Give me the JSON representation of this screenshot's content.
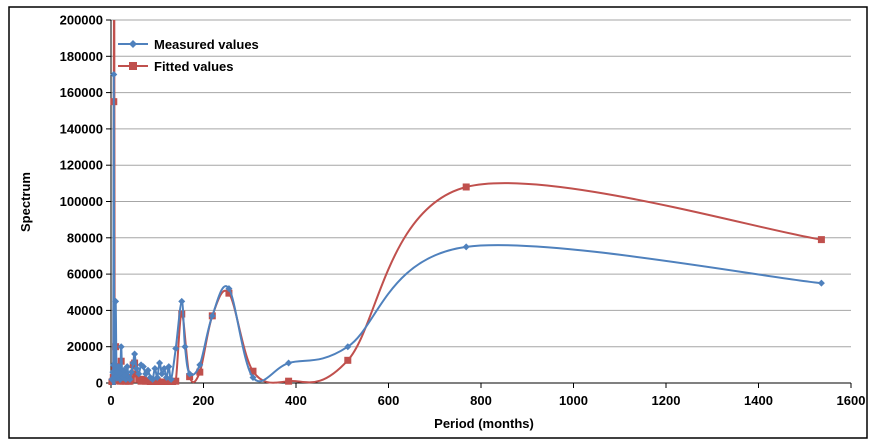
{
  "chart_data": {
    "type": "line",
    "xlabel": "Period (months)",
    "ylabel": "Spectrum",
    "xlim": [
      0,
      1600
    ],
    "ylim": [
      0,
      200000
    ],
    "xticks": [
      0,
      200,
      400,
      600,
      800,
      1000,
      1200,
      1400,
      1600
    ],
    "yticks": [
      0,
      20000,
      40000,
      60000,
      80000,
      100000,
      120000,
      140000,
      160000,
      180000,
      200000
    ],
    "grid": "horizontal",
    "legend": "top-left",
    "series": [
      {
        "name": "Measured values",
        "color": "#4f81bd",
        "marker": "diamond",
        "points": [
          [
            2,
            2000
          ],
          [
            4,
            6000
          ],
          [
            5,
            10000
          ],
          [
            6,
            170000
          ],
          [
            7,
            5000
          ],
          [
            8,
            3000
          ],
          [
            10,
            45000
          ],
          [
            12,
            4000
          ],
          [
            14,
            6000
          ],
          [
            16,
            9000
          ],
          [
            18,
            3000
          ],
          [
            20,
            2000
          ],
          [
            22,
            20000
          ],
          [
            24,
            5000
          ],
          [
            26,
            3000
          ],
          [
            28,
            7000
          ],
          [
            30,
            4000
          ],
          [
            32,
            2000
          ],
          [
            35,
            9000
          ],
          [
            38,
            3000
          ],
          [
            41,
            2000
          ],
          [
            44,
            6000
          ],
          [
            48,
            11000
          ],
          [
            51,
            16000
          ],
          [
            55,
            8000
          ],
          [
            60,
            5000
          ],
          [
            65,
            10000
          ],
          [
            70,
            9000
          ],
          [
            75,
            5000
          ],
          [
            80,
            7000
          ],
          [
            85,
            3000
          ],
          [
            90,
            2000
          ],
          [
            95,
            8000
          ],
          [
            100,
            3000
          ],
          [
            105,
            11000
          ],
          [
            110,
            5000
          ],
          [
            115,
            8000
          ],
          [
            120,
            3000
          ],
          [
            125,
            9000
          ],
          [
            130,
            2000
          ],
          [
            140,
            19000
          ],
          [
            153,
            45000
          ],
          [
            160,
            20000
          ],
          [
            170,
            5000
          ],
          [
            192,
            10000
          ],
          [
            219,
            37000
          ],
          [
            255,
            52000
          ],
          [
            307,
            3000
          ],
          [
            384,
            11000
          ],
          [
            512,
            20000
          ],
          [
            768,
            75000
          ],
          [
            1536,
            55000
          ]
        ]
      },
      {
        "name": "Fitted values",
        "color": "#c0504d",
        "marker": "square",
        "points": [
          [
            2,
            500
          ],
          [
            4,
            1000
          ],
          [
            5,
            3000
          ],
          [
            6,
            155000
          ],
          [
            7,
            230000
          ],
          [
            8,
            8000
          ],
          [
            10,
            20000
          ],
          [
            12,
            2000
          ],
          [
            14,
            4000
          ],
          [
            16,
            9000
          ],
          [
            18,
            2000
          ],
          [
            20,
            1000
          ],
          [
            22,
            12000
          ],
          [
            24,
            2000
          ],
          [
            26,
            1000
          ],
          [
            28,
            5000
          ],
          [
            30,
            2000
          ],
          [
            32,
            1000
          ],
          [
            35,
            3000
          ],
          [
            38,
            1000
          ],
          [
            41,
            1000
          ],
          [
            44,
            2000
          ],
          [
            48,
            10000
          ],
          [
            51,
            11000
          ],
          [
            55,
            5000
          ],
          [
            60,
            2000
          ],
          [
            65,
            1000
          ],
          [
            70,
            2000
          ],
          [
            75,
            1000
          ],
          [
            80,
            1000
          ],
          [
            85,
            500
          ],
          [
            90,
            500
          ],
          [
            95,
            500
          ],
          [
            100,
            1000
          ],
          [
            105,
            500
          ],
          [
            110,
            500
          ],
          [
            115,
            500
          ],
          [
            120,
            300
          ],
          [
            125,
            300
          ],
          [
            130,
            500
          ],
          [
            140,
            1000
          ],
          [
            153,
            38000
          ],
          [
            170,
            3500
          ],
          [
            192,
            6000
          ],
          [
            219,
            37000
          ],
          [
            255,
            49500
          ],
          [
            307,
            6500
          ],
          [
            384,
            1000
          ],
          [
            512,
            12500
          ],
          [
            768,
            108000
          ],
          [
            1536,
            79000
          ]
        ]
      }
    ]
  }
}
